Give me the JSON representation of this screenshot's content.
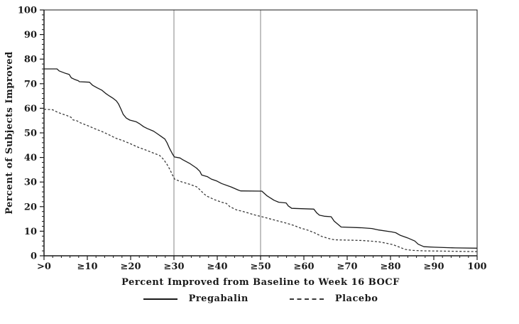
{
  "chart_data": {
    "type": "line",
    "title": "",
    "xlabel": "Percent Improved from Baseline to Week 16 BOCF",
    "ylabel": "Percent of Subjects Improved",
    "xlim": [
      0,
      100
    ],
    "ylim": [
      0,
      100
    ],
    "x_tick_values": [
      0,
      10,
      20,
      30,
      40,
      50,
      60,
      70,
      80,
      90,
      100
    ],
    "x_tick_labels": [
      ">0",
      "≥10",
      "≥20",
      "≥30",
      "≥40",
      "≥50",
      "≥60",
      "≥70",
      "≥80",
      "≥90",
      "100"
    ],
    "y_tick_values": [
      0,
      10,
      20,
      30,
      40,
      50,
      60,
      70,
      80,
      90,
      100
    ],
    "y_tick_labels": [
      "0",
      "10",
      "20",
      "30",
      "40",
      "50",
      "60",
      "70",
      "80",
      "90",
      "100"
    ],
    "minor_tick_step": 2,
    "grid": "off",
    "frame": "box",
    "reference_lines_x": [
      30,
      50
    ],
    "reference_line_color": "#9a9a9a",
    "legend_position": "bottom",
    "colors": {
      "pregabalin": "#1a1a1a",
      "placebo": "#3a3a3a",
      "axis": "#1a1a1a",
      "background": "#ffffff"
    },
    "series": [
      {
        "name": "Pregabalin",
        "style": "solid",
        "points": [
          [
            0,
            76
          ],
          [
            3,
            76
          ],
          [
            3.5,
            75.2
          ],
          [
            5,
            74.2
          ],
          [
            5.8,
            73.8
          ],
          [
            6.3,
            72.4
          ],
          [
            7,
            71.8
          ],
          [
            7.9,
            71.2
          ],
          [
            8.2,
            70.8
          ],
          [
            10.5,
            70.6
          ],
          [
            11.2,
            69.4
          ],
          [
            12.3,
            68.3
          ],
          [
            13.4,
            67.3
          ],
          [
            14.2,
            66.1
          ],
          [
            15.1,
            65
          ],
          [
            16,
            64
          ],
          [
            16.7,
            63
          ],
          [
            17.2,
            61.8
          ],
          [
            17.8,
            59.5
          ],
          [
            18.3,
            57.5
          ],
          [
            19,
            56
          ],
          [
            19.8,
            55.2
          ],
          [
            21.3,
            54.5
          ],
          [
            22,
            53.8
          ],
          [
            23,
            52.5
          ],
          [
            23.8,
            51.8
          ],
          [
            25.3,
            50.7
          ],
          [
            26.2,
            49.6
          ],
          [
            27,
            48.6
          ],
          [
            27.9,
            47.5
          ],
          [
            28.4,
            46
          ],
          [
            29,
            43.6
          ],
          [
            29.6,
            41.6
          ],
          [
            30.1,
            40.2
          ],
          [
            31.4,
            39.8
          ],
          [
            32,
            39.1
          ],
          [
            33.6,
            37.6
          ],
          [
            35.2,
            35.7
          ],
          [
            36,
            34.3
          ],
          [
            36.4,
            32.9
          ],
          [
            37.7,
            32.2
          ],
          [
            38.6,
            31.2
          ],
          [
            39.9,
            30.4
          ],
          [
            41,
            29.4
          ],
          [
            43.2,
            28
          ],
          [
            44.9,
            26.7
          ],
          [
            45.4,
            26.4
          ],
          [
            50.3,
            26.3
          ],
          [
            51.5,
            24.4
          ],
          [
            53.1,
            22.6
          ],
          [
            54.2,
            21.8
          ],
          [
            55.9,
            21.5
          ],
          [
            56.4,
            20.3
          ],
          [
            57.2,
            19.3
          ],
          [
            62.3,
            19
          ],
          [
            63,
            17.4
          ],
          [
            63.6,
            16.5
          ],
          [
            64.7,
            16.1
          ],
          [
            66.3,
            15.9
          ],
          [
            67,
            14.1
          ],
          [
            68,
            12.6
          ],
          [
            68.6,
            11.7
          ],
          [
            73.5,
            11.4
          ],
          [
            75.7,
            11.1
          ],
          [
            77.3,
            10.5
          ],
          [
            80.3,
            9.7
          ],
          [
            81.2,
            9.4
          ],
          [
            82.3,
            8.3
          ],
          [
            83.9,
            7.3
          ],
          [
            85.6,
            6
          ],
          [
            86.4,
            4.7
          ],
          [
            87.7,
            3.7
          ],
          [
            90,
            3.5
          ],
          [
            95,
            3.2
          ],
          [
            100,
            3.1
          ]
        ]
      },
      {
        "name": "Placebo",
        "style": "dashed",
        "points": [
          [
            0,
            59.6
          ],
          [
            2,
            59.4
          ],
          [
            3.1,
            58.4
          ],
          [
            4.2,
            57.7
          ],
          [
            5.2,
            57.1
          ],
          [
            6.2,
            56.4
          ],
          [
            6.7,
            55.3
          ],
          [
            7.6,
            54.9
          ],
          [
            8.4,
            54.1
          ],
          [
            10,
            53
          ],
          [
            11.7,
            51.7
          ],
          [
            13.3,
            50.6
          ],
          [
            14.9,
            49.3
          ],
          [
            16.6,
            47.8
          ],
          [
            18.3,
            46.8
          ],
          [
            19.9,
            45.6
          ],
          [
            21.8,
            44.1
          ],
          [
            23.4,
            43.1
          ],
          [
            25.1,
            41.9
          ],
          [
            26.7,
            40.8
          ],
          [
            27.6,
            39.2
          ],
          [
            28.4,
            37.2
          ],
          [
            29.1,
            35
          ],
          [
            29.6,
            33
          ],
          [
            30.2,
            31.1
          ],
          [
            31.9,
            30
          ],
          [
            33.6,
            29.1
          ],
          [
            35.2,
            28.1
          ],
          [
            36.1,
            26.7
          ],
          [
            36.9,
            25.2
          ],
          [
            37.7,
            24.2
          ],
          [
            39.4,
            22.8
          ],
          [
            41,
            21.8
          ],
          [
            42.1,
            21.3
          ],
          [
            42.9,
            20
          ],
          [
            44.4,
            18.7
          ],
          [
            46,
            18
          ],
          [
            48.7,
            16.6
          ],
          [
            50.3,
            15.9
          ],
          [
            53.1,
            14.6
          ],
          [
            55.9,
            13.3
          ],
          [
            57.6,
            12.4
          ],
          [
            59.2,
            11.3
          ],
          [
            60.8,
            10.5
          ],
          [
            62.5,
            9.3
          ],
          [
            64.1,
            7.9
          ],
          [
            65.8,
            7
          ],
          [
            67.1,
            6.5
          ],
          [
            70,
            6.4
          ],
          [
            73.5,
            6.2
          ],
          [
            75.1,
            6
          ],
          [
            77.3,
            5.7
          ],
          [
            79.1,
            5.1
          ],
          [
            80.6,
            4.5
          ],
          [
            82.1,
            3.5
          ],
          [
            83.4,
            2.6
          ],
          [
            85.1,
            2.2
          ],
          [
            88,
            2
          ],
          [
            92,
            1.9
          ],
          [
            96,
            1.8
          ],
          [
            100,
            1.7
          ]
        ]
      }
    ]
  }
}
